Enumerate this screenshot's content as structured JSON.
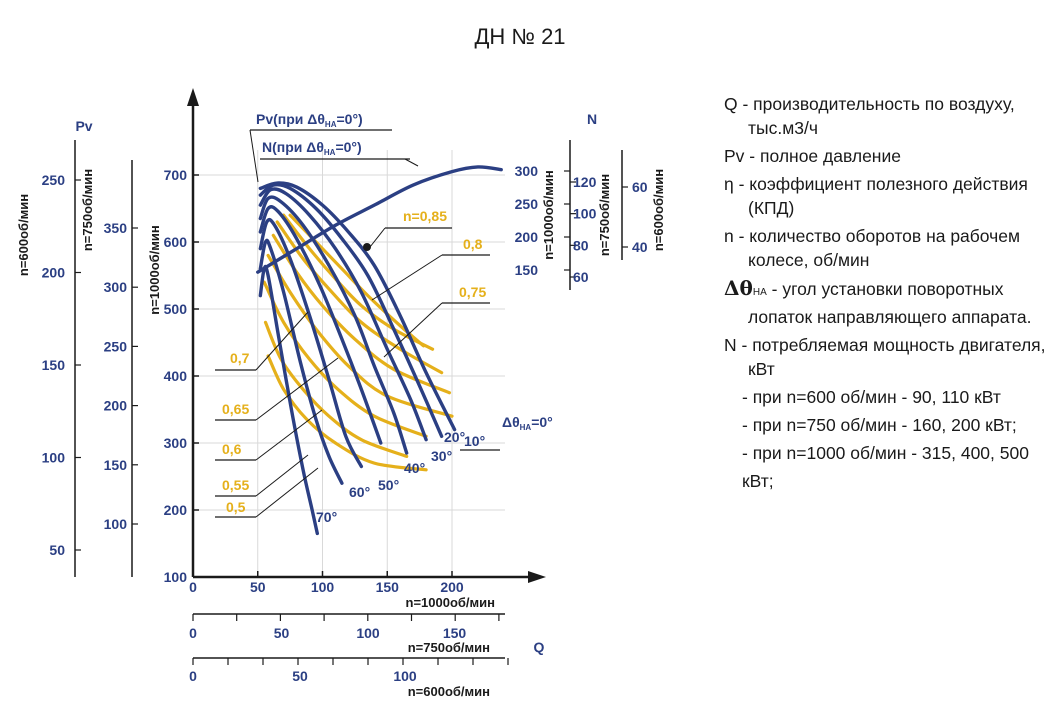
{
  "title": "ДН № 21",
  "legend": {
    "q_symbol": "Q",
    "q_text": " - производительность по воздуху,",
    "q_text2": "тыс.м3/ч",
    "pv_symbol": "Pv",
    "pv_text": " - полное давление",
    "eta_symbol": "η",
    "eta_text": " - коэффициент полезного действия",
    "eta_text2": "(КПД)",
    "n_symbol": "n",
    "n_text": " - количество оборотов на рабочем",
    "n_text2": "колесе, об/мин",
    "delta_symbol": "Δθ",
    "delta_sub": "НА",
    "delta_text": " - угол  установки поворотных",
    "delta_text2": "лопаток направляющего аппарата.",
    "N_symbol": "N",
    "N_text": " - потребляемая мощность двигателя,",
    "N_text2": "кВт",
    "N_items": [
      "- при n=600 об/мин - 90, 110 кВт",
      "- при n=750 об/мин - 160, 200 кВт;",
      "- при n=1000 об/мин - 315, 400, 500",
      "кВт;"
    ]
  },
  "chart_data": {
    "type": "line",
    "title": "ДН № 21",
    "colors": {
      "axis": "#1a1a1a",
      "curve": "#2b3f83",
      "efficiency": "#e5b01b",
      "leader": "#1a1a1a"
    },
    "x_axes": [
      {
        "label": "n=1000об/мин",
        "ticks": [
          "0",
          "50",
          "100",
          "150",
          "200"
        ],
        "values": [
          0,
          50,
          100,
          150,
          200
        ]
      },
      {
        "label": "n=750об/мин",
        "ticks": [
          "0",
          "50",
          "100",
          "150"
        ],
        "values": [
          0,
          50,
          100,
          150
        ]
      },
      {
        "label": "n=600об/мин",
        "ticks": [
          "0",
          "50",
          "100"
        ],
        "values": [
          0,
          50,
          100
        ]
      }
    ],
    "x_axis_symbol": "Q",
    "pressure_axes": [
      {
        "label": "n=1000об/мин",
        "ticks": [
          "100",
          "200",
          "300",
          "400",
          "500",
          "600",
          "700"
        ],
        "values": [
          100,
          200,
          300,
          400,
          500,
          600,
          700
        ]
      },
      {
        "label": "n=750об/мин",
        "ticks": [
          "100",
          "150",
          "200",
          "250",
          "300",
          "350"
        ],
        "values": [
          100,
          150,
          200,
          250,
          300,
          350
        ]
      },
      {
        "label": "n=600об/мин",
        "ticks": [
          "50",
          "100",
          "150",
          "200",
          "250"
        ],
        "values": [
          50,
          100,
          150,
          200,
          250
        ]
      }
    ],
    "pressure_symbol": "Pv",
    "power_axes": [
      {
        "label": "n=1000об/мин",
        "ticks": [
          "150",
          "200",
          "250",
          "300"
        ],
        "values": [
          150,
          200,
          250,
          300
        ]
      },
      {
        "label": "n=750об/мин",
        "ticks": [
          "60",
          "80",
          "100",
          "120"
        ],
        "values": [
          60,
          80,
          100,
          120
        ]
      },
      {
        "label": "n=600об/мин",
        "ticks": [
          "40",
          "60"
        ],
        "values": [
          40,
          60
        ]
      }
    ],
    "power_symbol": "N",
    "pv_legend": "Pv(при Δθ",
    "n_legend": "N(при Δθ",
    "legend_sub": "НА",
    "legend_suffix": "=0°)",
    "pv_curves": [
      {
        "angle": "0°",
        "label": "Δθ",
        "label_sub": "НА",
        "label_suffix": "=0°",
        "points": [
          [
            52,
            680
          ],
          [
            65,
            688
          ],
          [
            80,
            682
          ],
          [
            100,
            655
          ],
          [
            120,
            615
          ],
          [
            140,
            565
          ],
          [
            160,
            490
          ],
          [
            180,
            405
          ],
          [
            202,
            320
          ]
        ]
      },
      {
        "angle": "10°",
        "points": [
          [
            52,
            670
          ],
          [
            62,
            685
          ],
          [
            75,
            680
          ],
          [
            95,
            650
          ],
          [
            115,
            605
          ],
          [
            135,
            550
          ],
          [
            155,
            470
          ],
          [
            175,
            385
          ],
          [
            192,
            310
          ]
        ]
      },
      {
        "angle": "20°",
        "points": [
          [
            52,
            655
          ],
          [
            60,
            678
          ],
          [
            72,
            672
          ],
          [
            90,
            640
          ],
          [
            110,
            590
          ],
          [
            130,
            525
          ],
          [
            150,
            440
          ],
          [
            168,
            365
          ],
          [
            180,
            305
          ]
        ]
      },
      {
        "angle": "30°",
        "points": [
          [
            52,
            635
          ],
          [
            58,
            665
          ],
          [
            68,
            660
          ],
          [
            85,
            625
          ],
          [
            105,
            565
          ],
          [
            125,
            490
          ],
          [
            140,
            415
          ],
          [
            155,
            345
          ],
          [
            165,
            285
          ]
        ]
      },
      {
        "angle": "40°",
        "points": [
          [
            52,
            615
          ],
          [
            58,
            650
          ],
          [
            66,
            645
          ],
          [
            80,
            605
          ],
          [
            98,
            535
          ],
          [
            115,
            455
          ],
          [
            130,
            380
          ],
          [
            145,
            300
          ]
        ]
      },
      {
        "angle": "50°",
        "points": [
          [
            52,
            590
          ],
          [
            57,
            630
          ],
          [
            63,
            625
          ],
          [
            75,
            575
          ],
          [
            90,
            490
          ],
          [
            105,
            395
          ],
          [
            118,
            310
          ],
          [
            130,
            265
          ]
        ]
      },
      {
        "angle": "60°",
        "points": [
          [
            52,
            560
          ],
          [
            56,
            600
          ],
          [
            60,
            590
          ],
          [
            70,
            525
          ],
          [
            83,
            420
          ],
          [
            95,
            335
          ],
          [
            105,
            280
          ],
          [
            115,
            240
          ]
        ]
      },
      {
        "angle": "70°",
        "points": [
          [
            52,
            520
          ],
          [
            55,
            560
          ],
          [
            58,
            550
          ],
          [
            66,
            460
          ],
          [
            76,
            350
          ],
          [
            85,
            260
          ],
          [
            92,
            200
          ],
          [
            96,
            165
          ]
        ]
      }
    ],
    "power_curve": {
      "points": [
        [
          50,
          555
        ],
        [
          80,
          590
        ],
        [
          110,
          625
        ],
        [
          140,
          655
        ],
        [
          170,
          685
        ],
        [
          200,
          705
        ],
        [
          220,
          712
        ],
        [
          238,
          708
        ]
      ]
    },
    "efficiency_curves": [
      {
        "label": "n=0,85",
        "points": [
          [
            75,
            640
          ],
          [
            95,
            600
          ],
          [
            115,
            560
          ],
          [
            135,
            520
          ],
          [
            160,
            475
          ],
          [
            178,
            445
          ]
        ]
      },
      {
        "label": "0,8",
        "points": [
          [
            70,
            640
          ],
          [
            90,
            590
          ],
          [
            110,
            545
          ],
          [
            130,
            505
          ],
          [
            155,
            470
          ],
          [
            185,
            440
          ]
        ]
      },
      {
        "label": "0,75",
        "points": [
          [
            65,
            630
          ],
          [
            85,
            575
          ],
          [
            105,
            530
          ],
          [
            130,
            480
          ],
          [
            160,
            440
          ],
          [
            192,
            405
          ]
        ]
      },
      {
        "label": "0,7",
        "points": [
          [
            62,
            610
          ],
          [
            80,
            555
          ],
          [
            100,
            505
          ],
          [
            125,
            455
          ],
          [
            155,
            410
          ],
          [
            198,
            375
          ]
        ]
      },
      {
        "label": "0,65",
        "points": [
          [
            58,
            580
          ],
          [
            75,
            525
          ],
          [
            95,
            470
          ],
          [
            120,
            415
          ],
          [
            150,
            370
          ],
          [
            200,
            340
          ]
        ]
      },
      {
        "label": "0,6",
        "points": [
          [
            55,
            540
          ],
          [
            70,
            480
          ],
          [
            90,
            425
          ],
          [
            112,
            380
          ],
          [
            140,
            340
          ],
          [
            180,
            310
          ]
        ]
      },
      {
        "label": "0,55",
        "points": [
          [
            56,
            480
          ],
          [
            68,
            425
          ],
          [
            85,
            380
          ],
          [
            105,
            340
          ],
          [
            130,
            305
          ],
          [
            165,
            280
          ]
        ]
      },
      {
        "label": "0,5",
        "points": [
          [
            58,
            430
          ],
          [
            70,
            380
          ],
          [
            88,
            335
          ],
          [
            110,
            300
          ],
          [
            140,
            270
          ],
          [
            180,
            260
          ]
        ]
      }
    ]
  }
}
